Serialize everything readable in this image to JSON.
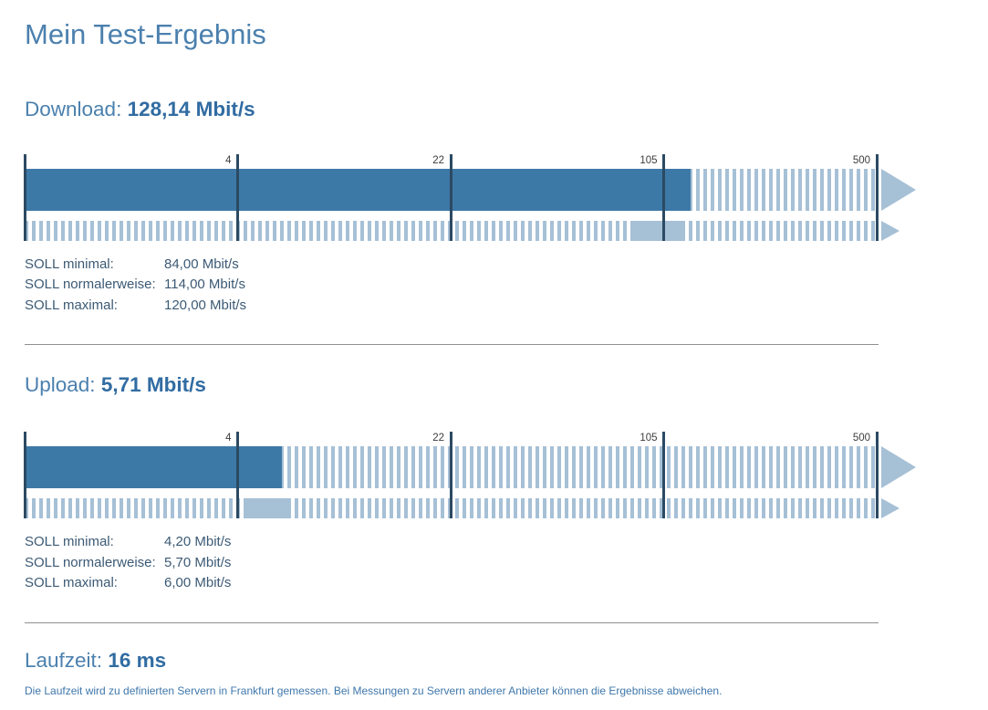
{
  "page_title": "Mein Test-Ergebnis",
  "sections": {
    "download": {
      "label": "Download: ",
      "value_text": "128,14 Mbit/s",
      "soll": [
        {
          "label": "SOLL minimal:",
          "value": "84,00 Mbit/s"
        },
        {
          "label": "SOLL normalerweise:",
          "value": "114,00 Mbit/s"
        },
        {
          "label": "SOLL maximal:",
          "value": "120,00 Mbit/s"
        }
      ]
    },
    "upload": {
      "label": "Upload: ",
      "value_text": "5,71 Mbit/s",
      "soll": [
        {
          "label": "SOLL minimal:",
          "value": "4,20 Mbit/s"
        },
        {
          "label": "SOLL normalerweise:",
          "value": "5,70 Mbit/s"
        },
        {
          "label": "SOLL maximal:",
          "value": "6,00 Mbit/s"
        }
      ]
    },
    "laufzeit": {
      "label": "Laufzeit: ",
      "value_text": "16 ms",
      "note": "Die Laufzeit wird zu definierten Servern in Frankfurt gemessen. Bei Messungen zu Servern anderer Anbieter können die Ergebnisse abweichen."
    }
  },
  "colors": {
    "accent_heading": "#4B80AE",
    "accent_heading_bold": "#316CA2",
    "bar_solid": "#3D79A7",
    "bar_light": "#A6C0D6",
    "tick_line": "#2C4A63"
  },
  "chart_data": [
    {
      "type": "bar",
      "name": "download-speed-gauge",
      "title": "Download: 128,14 Mbit/s",
      "unit": "Mbit/s",
      "scale": "piecewise-logarithmic",
      "axis_min": 0.8,
      "axis_ticks": [
        4,
        22,
        105,
        500
      ],
      "value": 128.14,
      "target_min": 84.0,
      "target_normal": 114.0,
      "target_max": 120.0,
      "legend": "off",
      "grid": "off"
    },
    {
      "type": "bar",
      "name": "upload-speed-gauge",
      "title": "Upload: 5,71 Mbit/s",
      "unit": "Mbit/s",
      "scale": "piecewise-logarithmic",
      "axis_min": 0.8,
      "axis_ticks": [
        4,
        22,
        105,
        500
      ],
      "value": 5.71,
      "target_min": 4.2,
      "target_normal": 5.7,
      "target_max": 6.0,
      "legend": "off",
      "grid": "off"
    }
  ]
}
